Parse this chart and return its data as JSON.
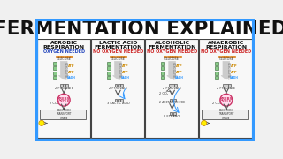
{
  "title": "FERMENTATION EXPLAINED!",
  "title_fontsize": 15.5,
  "background_color": "#f0f0f0",
  "border_color": "#3399ff",
  "border_width": 3,
  "title_bg": "#ffffff",
  "title_color": "#111111",
  "panels": [
    {
      "title_line1": "AEROBIC",
      "title_line2": "RESPIRATION",
      "oxygen": "OXYGEN NEEDED",
      "oxygen_color": "#2244bb",
      "type": "aerobic"
    },
    {
      "title_line1": "LACTIC ACID",
      "title_line2": "FERMENTATION",
      "oxygen": "NO OXYGEN NEEDED",
      "oxygen_color": "#cc2222",
      "type": "lactic"
    },
    {
      "title_line1": "ALCOHOLIC",
      "title_line2": "FERMENTATION",
      "oxygen": "NO OXYGEN NEEDED",
      "oxygen_color": "#cc2222",
      "type": "ethanol"
    },
    {
      "title_line1": "ANAEROBIC",
      "title_line2": "RESPIRATION",
      "oxygen": "NO OXYGEN NEEDED",
      "oxygen_color": "#cc2222",
      "type": "anaerobic"
    }
  ],
  "glucose_color": "#ff9900",
  "glucose_border": "#cc6600",
  "atp_color": "#ffcc00",
  "nadh_color": "#3399ff",
  "green_box_color": "#88cc88",
  "green_box_border": "#336633",
  "grey_box_color": "#aaaaaa",
  "grey_box_border": "#555555",
  "arrow_color": "#555555",
  "glycolysis_arrow_color": "#cccccc",
  "glycolysis_arrow_border": "#888888",
  "krebs_fill": "#ffddee",
  "krebs_border": "#cc3366",
  "krebs_text": "#cc3366",
  "etc_fill": "#eeeeee",
  "etc_border": "#555555",
  "sun_fill": "#ffee00",
  "sun_border": "#cc8800",
  "panel_bg": "#f8f8f8",
  "panel_border": "#444444"
}
